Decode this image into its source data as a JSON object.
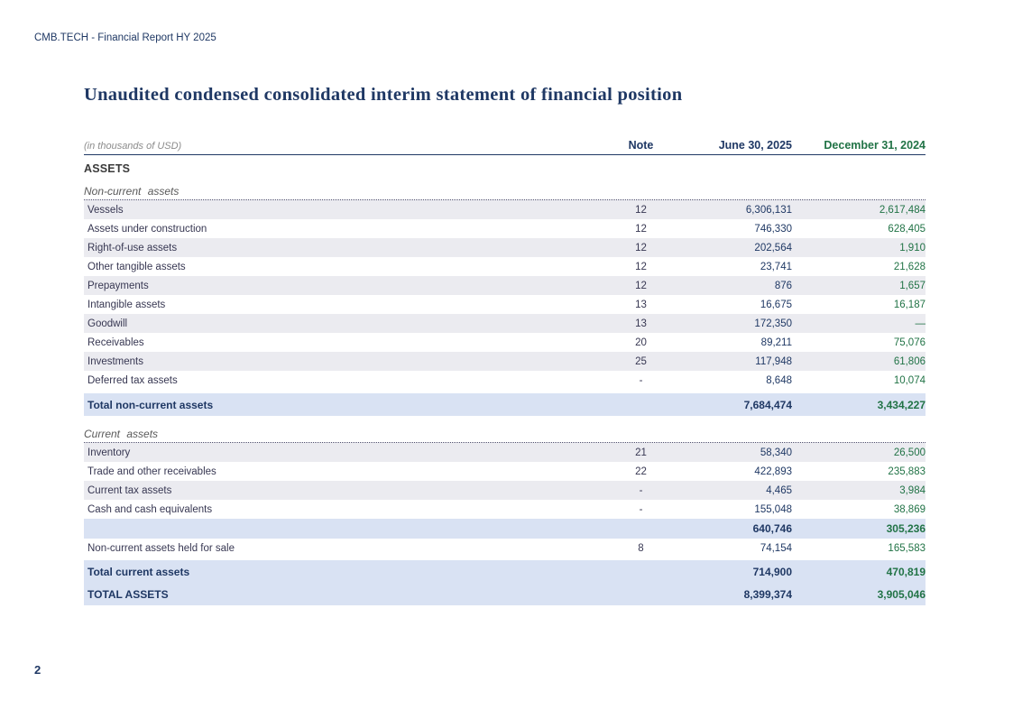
{
  "page": {
    "header": "CMB.TECH - Financial Report HY 2025",
    "title": "Unaudited condensed consolidated interim statement of financial position",
    "page_number": "2"
  },
  "colors": {
    "navy": "#1F3864",
    "green": "#217346",
    "total_band_blue": "#D9E2F3",
    "shaded_row_gray": "#EBEBF0"
  },
  "table": {
    "unit_label": "(in thousands of USD)",
    "columns": {
      "note": "Note",
      "current": "June 30, 2025",
      "prior": "December 31, 2024"
    },
    "section_assets": "ASSETS",
    "non_current": {
      "heading": "Non-current  assets",
      "rows": [
        {
          "label": "Vessels",
          "note": "12",
          "current": "6,306,131",
          "prior": "2,617,484"
        },
        {
          "label": "Assets under construction",
          "note": "12",
          "current": "746,330",
          "prior": "628,405"
        },
        {
          "label": "Right-of-use assets",
          "note": "12",
          "current": "202,564",
          "prior": "1,910"
        },
        {
          "label": "Other tangible assets",
          "note": "12",
          "current": "23,741",
          "prior": "21,628"
        },
        {
          "label": "Prepayments",
          "note": "12",
          "current": "876",
          "prior": "1,657"
        },
        {
          "label": "Intangible assets",
          "note": "13",
          "current": "16,675",
          "prior": "16,187"
        },
        {
          "label": "Goodwill",
          "note": "13",
          "current": "172,350",
          "prior": "—"
        },
        {
          "label": "Receivables",
          "note": "20",
          "current": "89,211",
          "prior": "75,076"
        },
        {
          "label": "Investments",
          "note": "25",
          "current": "117,948",
          "prior": "61,806"
        },
        {
          "label": "Deferred tax assets",
          "note": "-",
          "current": "8,648",
          "prior": "10,074"
        }
      ],
      "total": {
        "label": "Total non-current assets",
        "current": "7,684,474",
        "prior": "3,434,227"
      }
    },
    "current": {
      "heading": "Current  assets",
      "rows": [
        {
          "label": "Inventory",
          "note": "21",
          "current": "58,340",
          "prior": "26,500"
        },
        {
          "label": "Trade and other receivables",
          "note": "22",
          "current": "422,893",
          "prior": "235,883"
        },
        {
          "label": "Current tax  assets",
          "note": "-",
          "current": "4,465",
          "prior": "3,984"
        },
        {
          "label": "Cash and cash equivalents",
          "note": "-",
          "current": "155,048",
          "prior": "38,869"
        }
      ],
      "subtotal": {
        "current": "640,746",
        "prior": "305,236"
      },
      "held_for_sale": {
        "label": "Non-current assets held for sale",
        "note": "8",
        "current": "74,154",
        "prior": "165,583"
      },
      "total": {
        "label": "Total current assets",
        "current": "714,900",
        "prior": "470,819"
      }
    },
    "grand_total": {
      "label": "TOTAL ASSETS",
      "current": "8,399,374",
      "prior": "3,905,046"
    }
  }
}
